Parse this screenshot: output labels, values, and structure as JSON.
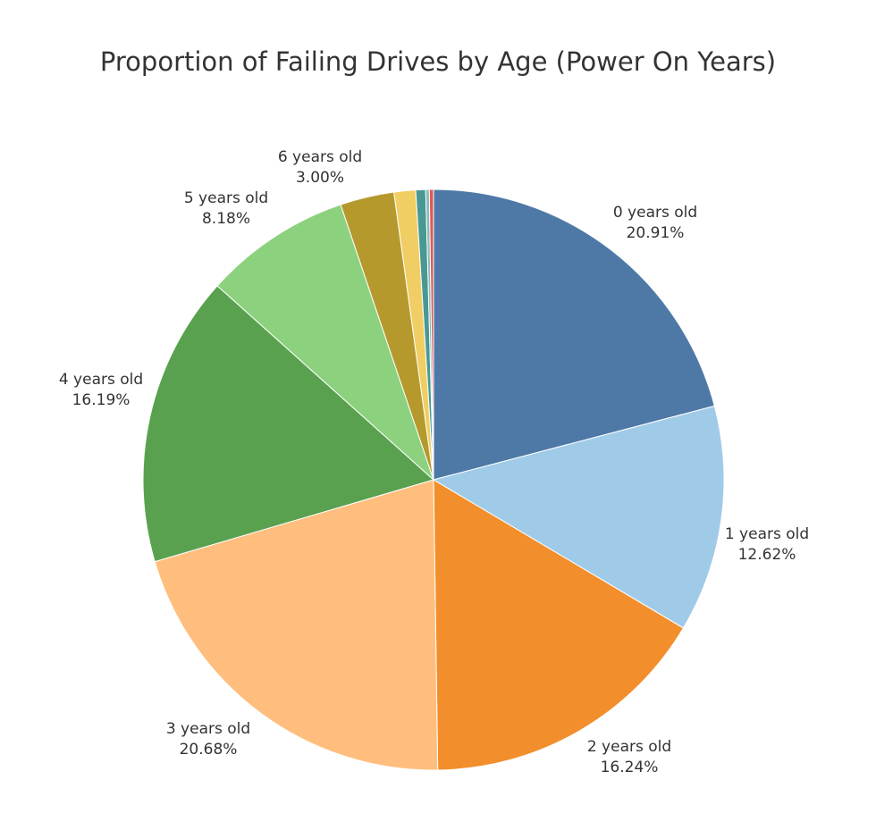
{
  "chart_data": {
    "type": "pie",
    "title": "Proportion of Failing Drives by Age (Power On Years)",
    "start_angle": "12 o'clock",
    "direction": "clockwise",
    "slices": [
      {
        "label": "0 years old",
        "value": 20.91,
        "value_label": "20.91%",
        "color": "#4e79a7"
      },
      {
        "label": "1 years old",
        "value": 12.62,
        "value_label": "12.62%",
        "color": "#a0cbe8"
      },
      {
        "label": "2 years old",
        "value": 16.24,
        "value_label": "16.24%",
        "color": "#f28e2b"
      },
      {
        "label": "3 years old",
        "value": 20.68,
        "value_label": "20.68%",
        "color": "#ffbe7d"
      },
      {
        "label": "4 years old",
        "value": 16.19,
        "value_label": "16.19%",
        "color": "#59a14f"
      },
      {
        "label": "5 years old",
        "value": 8.18,
        "value_label": "8.18%",
        "color": "#8cd17d"
      },
      {
        "label": "6 years old",
        "value": 3.0,
        "value_label": "3.00%",
        "color": "#b6992d"
      },
      {
        "label": "",
        "value": 1.2,
        "value_label": "",
        "color": "#f1ce63"
      },
      {
        "label": "",
        "value": 0.55,
        "value_label": "",
        "color": "#499894"
      },
      {
        "label": "",
        "value": 0.2,
        "value_label": "",
        "color": "#86bcb6"
      },
      {
        "label": "",
        "value": 0.23,
        "value_label": "",
        "color": "#e15759"
      }
    ]
  }
}
